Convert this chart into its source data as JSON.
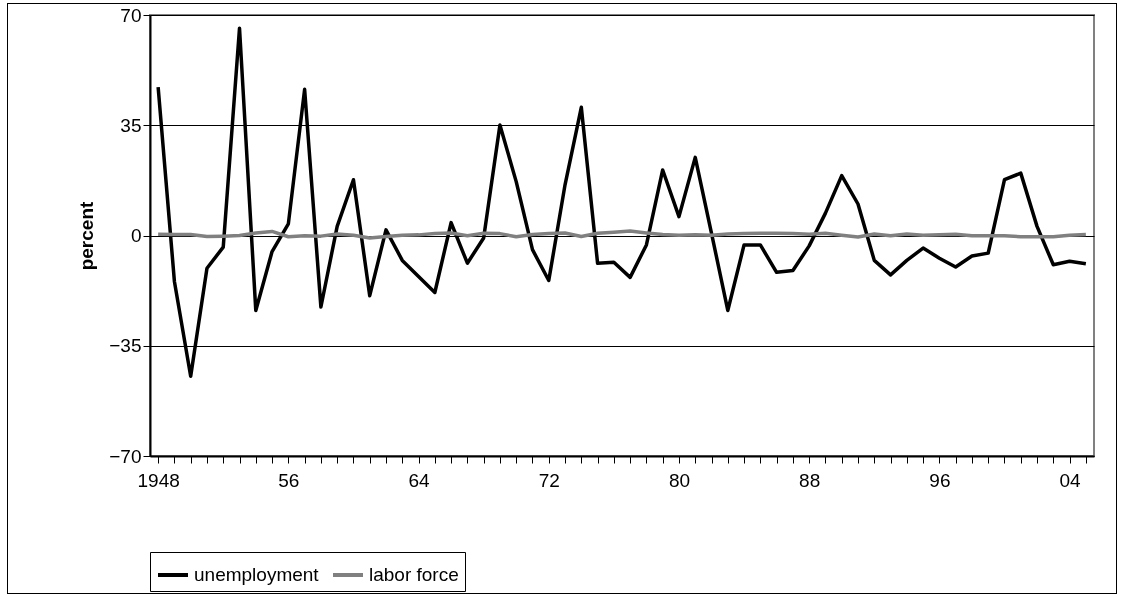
{
  "chart_data": {
    "type": "line",
    "ylabel": "percent",
    "categories": [
      "1948",
      null,
      null,
      null,
      null,
      null,
      null,
      null,
      "56",
      null,
      null,
      null,
      null,
      null,
      null,
      null,
      "64",
      null,
      null,
      null,
      null,
      null,
      null,
      null,
      "72",
      null,
      null,
      null,
      null,
      null,
      null,
      null,
      "80",
      null,
      null,
      null,
      null,
      null,
      null,
      null,
      "88",
      null,
      null,
      null,
      null,
      null,
      null,
      null,
      "96",
      null,
      null,
      null,
      null,
      null,
      null,
      null,
      "04",
      null
    ],
    "series": [
      {
        "name": "unemployment",
        "color": "#000000",
        "values": [
          47.1,
          -14.6,
          -44.7,
          -10.4,
          -3.7,
          65.8,
          -23.8,
          -5.1,
          3.7,
          46.4,
          -22.7,
          2.9,
          17.7,
          -19.1,
          1.8,
          -7.9,
          -13.0,
          -18.1,
          4.1,
          -8.8,
          -0.8,
          35.1,
          17.1,
          -4.5,
          -14.3,
          16.1,
          40.7,
          -8.8,
          -8.5,
          -13.3,
          -3.0,
          20.8,
          6.0,
          24.8,
          0.7,
          -23.8,
          -3.0,
          -3.0,
          -11.7,
          -11.1,
          -3.3,
          7.1,
          19.0,
          10.0,
          -7.9,
          -12.5,
          -7.9,
          -4.0,
          -7.2,
          -10.0,
          -6.5,
          -5.6,
          17.7,
          19.8,
          2.9,
          -9.3,
          -8.2,
          -9.0
        ]
      },
      {
        "name": "labor force",
        "color": "#808080",
        "values": [
          0.4,
          0.3,
          0.3,
          -0.3,
          -0.2,
          0.0,
          0.8,
          1.3,
          -0.4,
          -0.1,
          -0.2,
          0.5,
          0.1,
          -0.8,
          -0.3,
          0.1,
          0.2,
          0.6,
          0.8,
          -0.1,
          0.7,
          0.6,
          -0.4,
          0.3,
          0.6,
          0.8,
          -0.3,
          0.7,
          1.0,
          1.4,
          0.8,
          0.3,
          0.1,
          0.2,
          0.1,
          0.5,
          0.6,
          0.7,
          0.7,
          0.6,
          0.4,
          0.7,
          0.1,
          -0.5,
          0.5,
          -0.1,
          0.5,
          0.1,
          0.2,
          0.4,
          -0.1,
          -0.1,
          -0.1,
          -0.4,
          -0.4,
          -0.4,
          0.1,
          0.3
        ]
      }
    ],
    "ylim": [
      -70,
      70
    ],
    "yticks": [
      -70,
      -35,
      0,
      35,
      70
    ],
    "grid": "y",
    "legend": "bottom"
  }
}
